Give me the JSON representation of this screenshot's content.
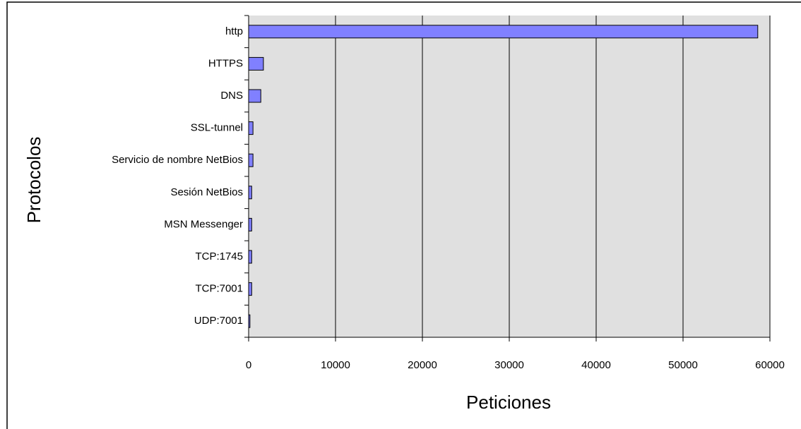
{
  "chart_data": {
    "type": "bar",
    "orientation": "horizontal",
    "xlabel": "Peticiones",
    "ylabel": "Protocolos",
    "categories": [
      "http",
      "HTTPS",
      "DNS",
      "SSL-tunnel",
      "Servicio de nombre NetBios",
      "Sesión NetBios",
      "MSN Messenger",
      "TCP:1745",
      "TCP:7001",
      "UDP:7001"
    ],
    "values": [
      58600,
      1700,
      1400,
      500,
      500,
      350,
      350,
      350,
      350,
      150
    ],
    "color": "#8080ff",
    "xlim": [
      0,
      60000
    ],
    "xticks": [
      0,
      10000,
      20000,
      30000,
      40000,
      50000,
      60000
    ],
    "grid": true
  }
}
